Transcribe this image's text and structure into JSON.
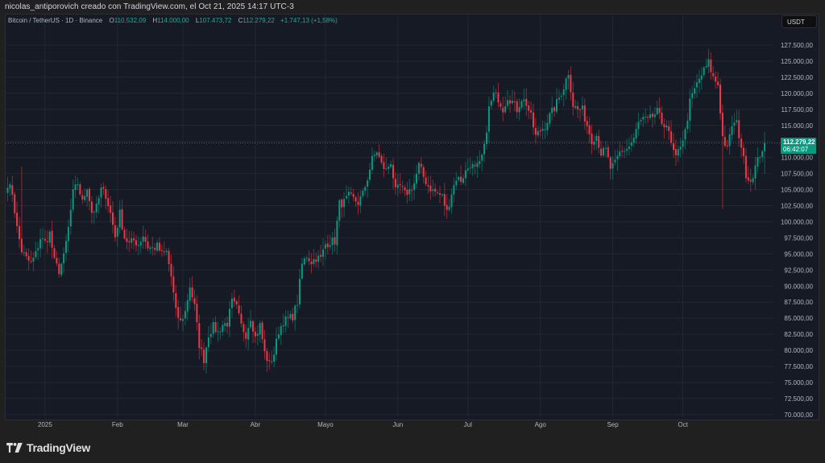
{
  "attribution": "nicolas_antiporovich creado con TradingView.com, el Oct 21, 2025 14:17 UTC-3",
  "legend": {
    "symbol": "Bitcoin / TetherUS · 1D · Binance",
    "o_label": "O",
    "open": "110.532,09",
    "h_label": "H",
    "high": "114.000,00",
    "l_label": "L",
    "low": "107.473,72",
    "c_label": "C",
    "close": "112.279,22",
    "change": "+1.747,13 (+1,58%)"
  },
  "currency_button": "USDT",
  "last_price": {
    "value": "112.279,22",
    "countdown": "06:42:07"
  },
  "brand": {
    "name": "TradingView",
    "icon": "tradingview-logo-icon"
  },
  "colors": {
    "up": "#089981",
    "down": "#f23645",
    "background": "#161a25",
    "grid": "#232733",
    "frame": "#202020"
  },
  "chart_data": {
    "type": "candlestick",
    "title": "Bitcoin / TetherUS · 1D · Binance",
    "xlabel": "",
    "ylabel": "USDT",
    "ylim": [
      68500,
      129500
    ],
    "grid": true,
    "legend_position": "top-left",
    "y_ticks": [
      "127.500,00",
      "125.000,00",
      "122.500,00",
      "120.000,00",
      "117.500,00",
      "115.000,00",
      "110.000,00",
      "107.500,00",
      "105.000,00",
      "102.500,00",
      "100.000,00",
      "97.500,00",
      "95.000,00",
      "92.500,00",
      "90.000,00",
      "87.500,00",
      "85.000,00",
      "82.500,00",
      "80.000,00",
      "77.500,00",
      "75.000,00",
      "72.500,00",
      "70.000,00"
    ],
    "y_tick_values": [
      127500,
      125000,
      122500,
      120000,
      117500,
      115000,
      110000,
      107500,
      105000,
      102500,
      100000,
      97500,
      95000,
      92500,
      90000,
      87500,
      85000,
      82500,
      80000,
      77500,
      75000,
      72500,
      70000
    ],
    "x_ticks": [
      {
        "label": "2025",
        "day": 16
      },
      {
        "label": "Feb",
        "day": 47
      },
      {
        "label": "Mar",
        "day": 75
      },
      {
        "label": "Abr",
        "day": 106
      },
      {
        "label": "Mayo",
        "day": 136
      },
      {
        "label": "Jun",
        "day": 167
      },
      {
        "label": "Jul",
        "day": 197
      },
      {
        "label": "Ago",
        "day": 228
      },
      {
        "label": "Sep",
        "day": 259
      },
      {
        "label": "Oct",
        "day": 289
      }
    ],
    "start_date": "2024-12-16",
    "last_close": 112279.22,
    "anchors_close": [
      [
        0,
        106000
      ],
      [
        2,
        104500
      ],
      [
        4,
        99000
      ],
      [
        6,
        95500
      ],
      [
        8,
        94300
      ],
      [
        10,
        93500
      ],
      [
        12,
        95000
      ],
      [
        14,
        97500
      ],
      [
        16,
        96800
      ],
      [
        18,
        98200
      ],
      [
        20,
        93800
      ],
      [
        22,
        92400
      ],
      [
        24,
        94500
      ],
      [
        26,
        99000
      ],
      [
        28,
        104500
      ],
      [
        30,
        106000
      ],
      [
        32,
        103000
      ],
      [
        34,
        105500
      ],
      [
        36,
        101500
      ],
      [
        38,
        102200
      ],
      [
        40,
        105000
      ],
      [
        42,
        104200
      ],
      [
        44,
        101300
      ],
      [
        46,
        97700
      ],
      [
        48,
        101300
      ],
      [
        50,
        97600
      ],
      [
        52,
        96600
      ],
      [
        54,
        97100
      ],
      [
        56,
        96500
      ],
      [
        58,
        97900
      ],
      [
        60,
        96100
      ],
      [
        62,
        95800
      ],
      [
        64,
        96200
      ],
      [
        66,
        95000
      ],
      [
        68,
        95300
      ],
      [
        70,
        91500
      ],
      [
        72,
        86000
      ],
      [
        74,
        84400
      ],
      [
        76,
        86000
      ],
      [
        78,
        90000
      ],
      [
        80,
        86800
      ],
      [
        82,
        80900
      ],
      [
        84,
        78600
      ],
      [
        86,
        82500
      ],
      [
        88,
        83700
      ],
      [
        90,
        82800
      ],
      [
        92,
        84000
      ],
      [
        94,
        84200
      ],
      [
        96,
        87500
      ],
      [
        98,
        86600
      ],
      [
        100,
        83800
      ],
      [
        102,
        82500
      ],
      [
        104,
        85200
      ],
      [
        106,
        82000
      ],
      [
        108,
        83900
      ],
      [
        110,
        79600
      ],
      [
        112,
        77800
      ],
      [
        114,
        79500
      ],
      [
        116,
        83000
      ],
      [
        118,
        84600
      ],
      [
        120,
        84800
      ],
      [
        122,
        85300
      ],
      [
        124,
        87500
      ],
      [
        126,
        93400
      ],
      [
        128,
        94700
      ],
      [
        130,
        93800
      ],
      [
        132,
        94400
      ],
      [
        134,
        94300
      ],
      [
        136,
        96500
      ],
      [
        138,
        96900
      ],
      [
        140,
        97000
      ],
      [
        142,
        102800
      ],
      [
        144,
        103000
      ],
      [
        146,
        104000
      ],
      [
        148,
        103500
      ],
      [
        150,
        103000
      ],
      [
        152,
        104300
      ],
      [
        154,
        106800
      ],
      [
        156,
        109700
      ],
      [
        158,
        111000
      ],
      [
        160,
        108900
      ],
      [
        162,
        108000
      ],
      [
        164,
        109400
      ],
      [
        166,
        104700
      ],
      [
        168,
        105500
      ],
      [
        170,
        104300
      ],
      [
        172,
        104900
      ],
      [
        174,
        106000
      ],
      [
        176,
        108800
      ],
      [
        178,
        107000
      ],
      [
        180,
        105600
      ],
      [
        182,
        104800
      ],
      [
        184,
        104500
      ],
      [
        186,
        103900
      ],
      [
        188,
        101500
      ],
      [
        190,
        104500
      ],
      [
        192,
        106800
      ],
      [
        194,
        106500
      ],
      [
        196,
        107800
      ],
      [
        198,
        109000
      ],
      [
        200,
        108200
      ],
      [
        202,
        108900
      ],
      [
        204,
        111500
      ],
      [
        206,
        117600
      ],
      [
        208,
        119800
      ],
      [
        210,
        119200
      ],
      [
        212,
        117600
      ],
      [
        214,
        119500
      ],
      [
        216,
        118700
      ],
      [
        218,
        117500
      ],
      [
        220,
        119200
      ],
      [
        222,
        118400
      ],
      [
        224,
        116300
      ],
      [
        226,
        113300
      ],
      [
        228,
        114200
      ],
      [
        230,
        115000
      ],
      [
        232,
        116500
      ],
      [
        234,
        117700
      ],
      [
        236,
        119300
      ],
      [
        238,
        121000
      ],
      [
        240,
        123300
      ],
      [
        242,
        118200
      ],
      [
        244,
        117400
      ],
      [
        246,
        117400
      ],
      [
        248,
        115000
      ],
      [
        250,
        112800
      ],
      [
        252,
        113500
      ],
      [
        254,
        110700
      ],
      [
        256,
        111100
      ],
      [
        258,
        108300
      ],
      [
        260,
        109000
      ],
      [
        262,
        110700
      ],
      [
        264,
        111200
      ],
      [
        266,
        111700
      ],
      [
        268,
        113000
      ],
      [
        270,
        115300
      ],
      [
        272,
        116000
      ],
      [
        274,
        115700
      ],
      [
        276,
        116400
      ],
      [
        278,
        117100
      ],
      [
        280,
        115400
      ],
      [
        282,
        115200
      ],
      [
        284,
        112000
      ],
      [
        286,
        109700
      ],
      [
        288,
        112100
      ],
      [
        290,
        114000
      ],
      [
        292,
        118600
      ],
      [
        294,
        120600
      ],
      [
        296,
        122200
      ],
      [
        298,
        123500
      ],
      [
        300,
        124800
      ],
      [
        302,
        122400
      ],
      [
        304,
        121400
      ],
      [
        306,
        113200
      ],
      [
        308,
        111200
      ],
      [
        310,
        115100
      ],
      [
        312,
        115300
      ],
      [
        314,
        111800
      ],
      [
        316,
        107500
      ],
      [
        318,
        106400
      ],
      [
        320,
        108500
      ],
      [
        322,
        110500
      ],
      [
        324,
        112279
      ]
    ],
    "spikes": [
      [
        306,
        102000,
        null
      ],
      [
        117,
        null,
        null
      ],
      [
        6,
        null,
        108600
      ]
    ]
  }
}
